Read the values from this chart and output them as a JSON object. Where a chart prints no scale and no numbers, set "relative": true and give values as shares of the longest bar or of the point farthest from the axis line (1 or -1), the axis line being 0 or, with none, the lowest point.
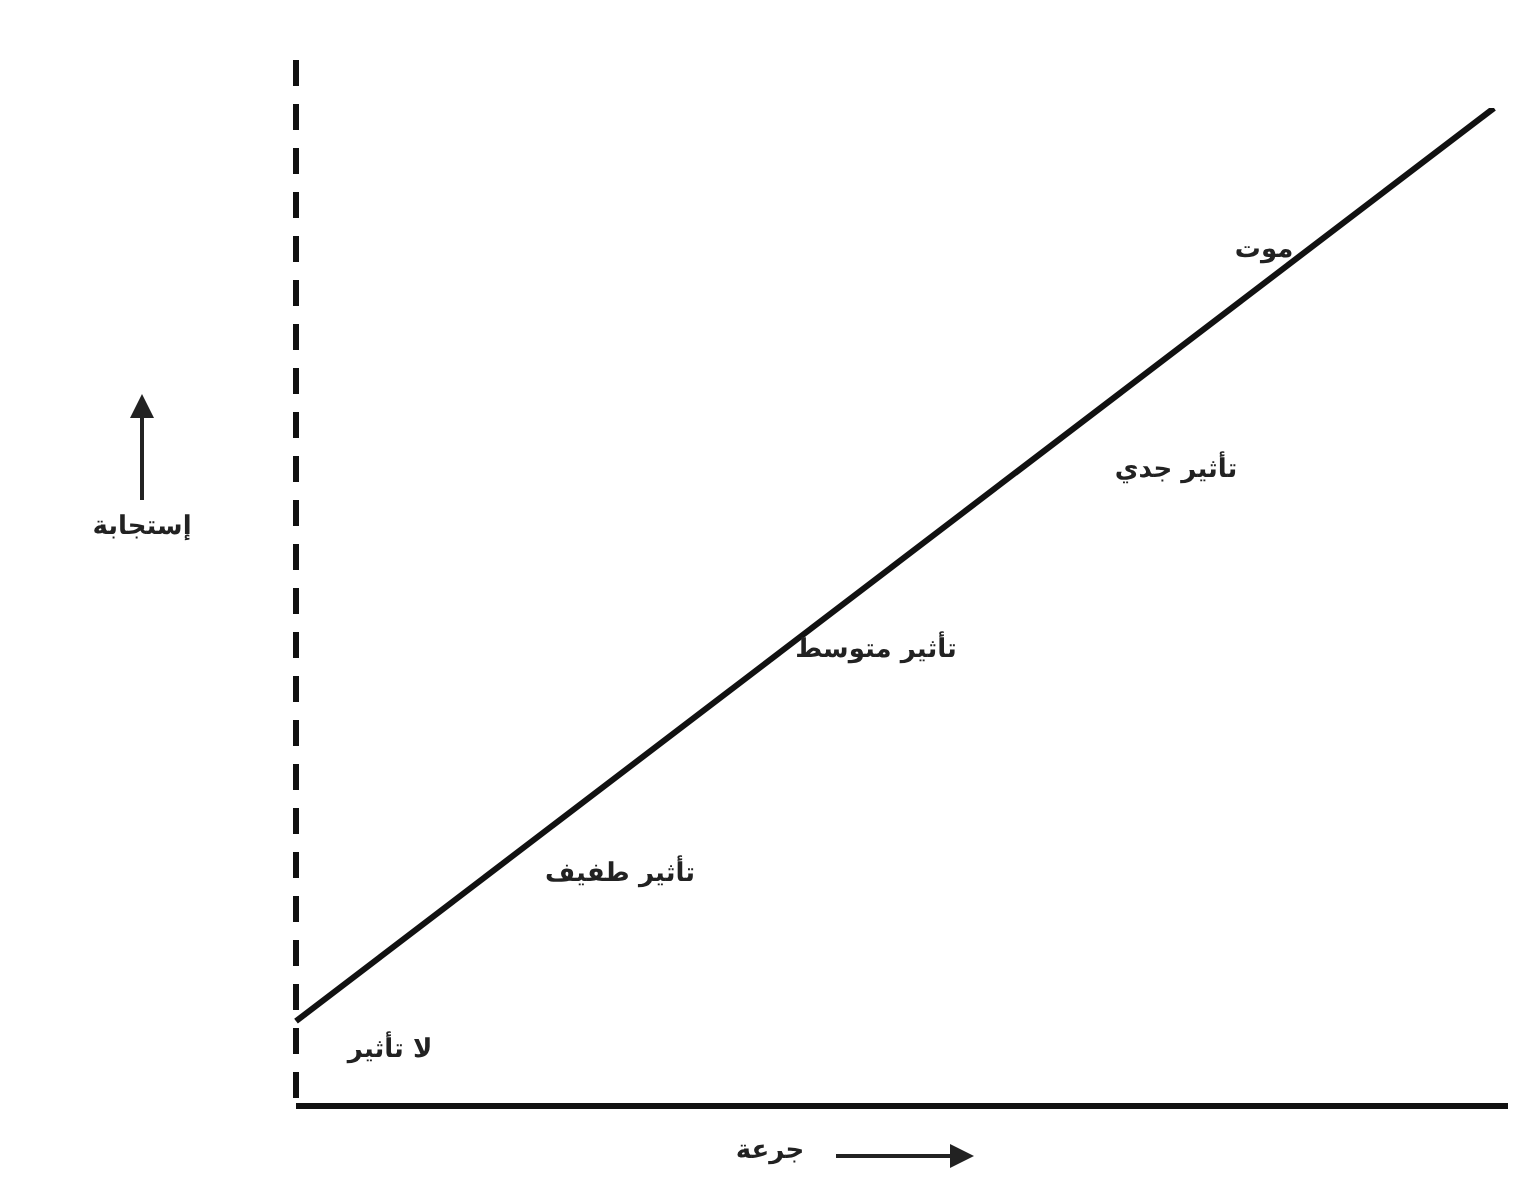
{
  "chart_data": {
    "type": "line",
    "relative": true,
    "categories": [
      null,
      null
    ],
    "series": [
      {
        "color": "#111111",
        "values": [
          0.085,
          1
        ]
      }
    ],
    "ref_lines": [
      {
        "axis": "y",
        "value": 0,
        "color": "#111111"
      }
    ],
    "xlabel": "جرعة",
    "ylabel": "إستجابة",
    "marker": "none",
    "legend": false,
    "grid": false,
    "annotations": [
      "موت",
      "تأثير جدي",
      "تأثير متوسط",
      "تأثير طفيف",
      "لا تأثير"
    ]
  }
}
